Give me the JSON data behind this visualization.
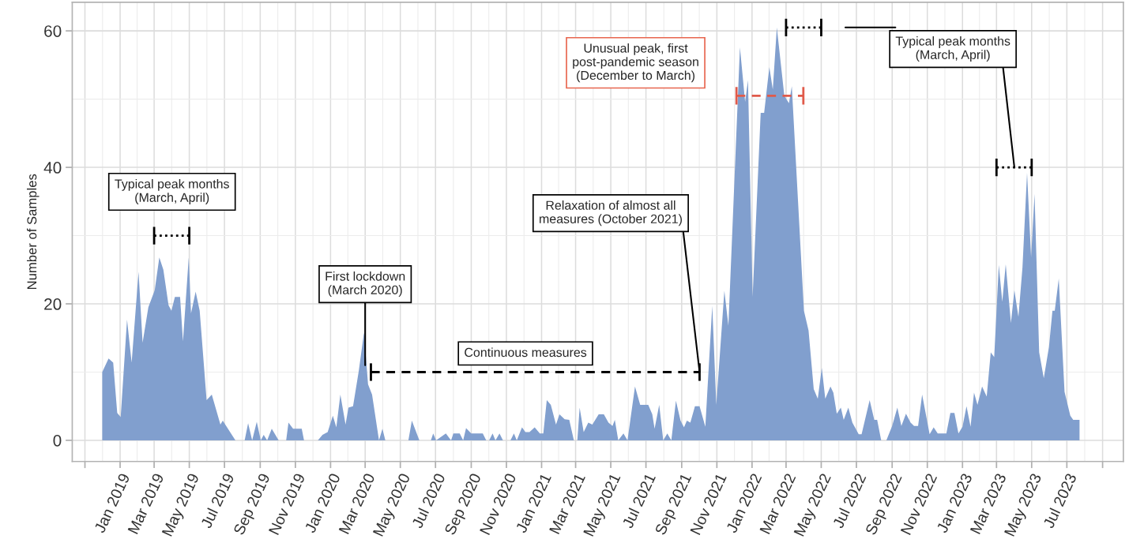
{
  "chart_data": {
    "type": "area",
    "ylabel": "Number of Samples",
    "xlim": [
      "2018-10-10",
      "2023-10-07"
    ],
    "ylim": [
      -3.1,
      64.2
    ],
    "yticks": [
      0,
      20,
      40,
      60
    ],
    "xticks": [
      {
        "value": "2018-11",
        "label": null
      },
      {
        "value": "2019-01",
        "label": "Jan 2019"
      },
      {
        "value": "2019-03",
        "label": "Mar 2019"
      },
      {
        "value": "2019-05",
        "label": "May 2019"
      },
      {
        "value": "2019-07",
        "label": "Jul 2019"
      },
      {
        "value": "2019-09",
        "label": "Sep 2019"
      },
      {
        "value": "2019-11",
        "label": "Nov 2019"
      },
      {
        "value": "2020-01",
        "label": "Jan 2020"
      },
      {
        "value": "2020-03",
        "label": "Mar 2020"
      },
      {
        "value": "2020-05",
        "label": "May 2020"
      },
      {
        "value": "2020-07",
        "label": "Jul 2020"
      },
      {
        "value": "2020-09",
        "label": "Sep 2020"
      },
      {
        "value": "2020-11",
        "label": "Nov 2020"
      },
      {
        "value": "2021-01",
        "label": "Jan 2021"
      },
      {
        "value": "2021-03",
        "label": "Mar 2021"
      },
      {
        "value": "2021-05",
        "label": "May 2021"
      },
      {
        "value": "2021-07",
        "label": "Jul 2021"
      },
      {
        "value": "2021-09",
        "label": "Sep 2021"
      },
      {
        "value": "2021-11",
        "label": "Nov 2021"
      },
      {
        "value": "2022-01",
        "label": "Jan 2022"
      },
      {
        "value": "2022-03",
        "label": "Mar 2022"
      },
      {
        "value": "2022-05",
        "label": "May 2022"
      },
      {
        "value": "2022-07",
        "label": "Jul 2022"
      },
      {
        "value": "2022-09",
        "label": "Sep 2022"
      },
      {
        "value": "2022-11",
        "label": "Nov 2022"
      },
      {
        "value": "2023-01",
        "label": "Jan 2023"
      },
      {
        "value": "2023-03",
        "label": "Mar 2023"
      },
      {
        "value": "2023-05",
        "label": "May 2023"
      },
      {
        "value": "2023-07",
        "label": "Jul 2023"
      },
      {
        "value": "2023-09",
        "label": null
      }
    ],
    "grid": true,
    "series": [
      {
        "color": "#819fce",
        "x": [
          "2018-12-01",
          "2018-12-12",
          "2018-12-20",
          "2018-12-27",
          "2019-01-02",
          "2019-01-13",
          "2019-01-21",
          "2019-02-02",
          "2019-02-09",
          "2019-02-19",
          "2019-03-02",
          "2019-03-10",
          "2019-03-17",
          "2019-03-26",
          "2019-03-31",
          "2019-04-06",
          "2019-04-15",
          "2019-04-20",
          "2019-04-30",
          "2019-05-04",
          "2019-05-12",
          "2019-05-19",
          "2019-05-31",
          "2019-06-09",
          "2019-06-24",
          "2019-06-28",
          "2019-07-20",
          "2019-08-05",
          "2019-08-11",
          "2019-08-18",
          "2019-08-26",
          "2019-09-02",
          "2019-09-07",
          "2019-09-13",
          "2019-09-21",
          "2019-10-03",
          "2019-10-16",
          "2019-10-20",
          "2019-10-28",
          "2019-11-12",
          "2019-11-16",
          "2019-12-10",
          "2019-12-18",
          "2019-12-27",
          "2020-01-05",
          "2020-01-11",
          "2020-01-18",
          "2020-01-27",
          "2020-02-01",
          "2020-02-09",
          "2020-02-19",
          "2020-02-28",
          "2020-03-06",
          "2020-03-13",
          "2020-03-25",
          "2020-03-31",
          "2020-04-05",
          "2020-05-15",
          "2020-05-21",
          "2020-06-03",
          "2020-06-23",
          "2020-06-27",
          "2020-07-02",
          "2020-07-19",
          "2020-07-28",
          "2020-08-01",
          "2020-08-12",
          "2020-08-18",
          "2020-08-23",
          "2020-09-01",
          "2020-09-21",
          "2020-09-27",
          "2020-10-02",
          "2020-10-08",
          "2020-10-13",
          "2020-10-20",
          "2020-10-26",
          "2020-11-08",
          "2020-11-14",
          "2020-11-19",
          "2020-11-28",
          "2020-12-04",
          "2020-12-11",
          "2020-12-20",
          "2020-12-29",
          "2021-01-04",
          "2021-01-10",
          "2021-01-17",
          "2021-01-26",
          "2021-02-01",
          "2021-02-10",
          "2021-02-18",
          "2021-02-26",
          "2021-03-04",
          "2021-03-08",
          "2021-03-15",
          "2021-03-23",
          "2021-03-30",
          "2021-04-10",
          "2021-04-19",
          "2021-04-27",
          "2021-05-04",
          "2021-05-08",
          "2021-05-14",
          "2021-05-23",
          "2021-05-30",
          "2021-06-12",
          "2021-06-21",
          "2021-07-05",
          "2021-07-12",
          "2021-07-16",
          "2021-07-24",
          "2021-07-31",
          "2021-08-07",
          "2021-08-14",
          "2021-08-22",
          "2021-08-30",
          "2021-09-05",
          "2021-09-10",
          "2021-09-16",
          "2021-09-24",
          "2021-10-02",
          "2021-10-12",
          "2021-10-24",
          "2021-10-31",
          "2021-11-14",
          "2021-11-21",
          "2021-12-11",
          "2021-12-20",
          "2021-12-25",
          "2022-01-02",
          "2022-01-16",
          "2022-01-22",
          "2022-01-31",
          "2022-02-06",
          "2022-02-13",
          "2022-02-26",
          "2022-03-06",
          "2022-03-11",
          "2022-04-01",
          "2022-04-09",
          "2022-04-18",
          "2022-04-25",
          "2022-05-02",
          "2022-05-08",
          "2022-05-17",
          "2022-05-22",
          "2022-05-28",
          "2022-06-04",
          "2022-06-09",
          "2022-06-17",
          "2022-06-24",
          "2022-07-05",
          "2022-07-10",
          "2022-07-24",
          "2022-08-01",
          "2022-08-06",
          "2022-08-13",
          "2022-08-22",
          "2022-09-01",
          "2022-09-10",
          "2022-09-17",
          "2022-09-25",
          "2022-10-03",
          "2022-10-09",
          "2022-10-16",
          "2022-10-23",
          "2022-11-05",
          "2022-11-12",
          "2022-11-19",
          "2022-12-04",
          "2022-12-11",
          "2022-12-18",
          "2022-12-25",
          "2023-01-01",
          "2023-01-08",
          "2023-01-15",
          "2023-01-21",
          "2023-01-27",
          "2023-02-04",
          "2023-02-12",
          "2023-02-19",
          "2023-02-25",
          "2023-03-05",
          "2023-03-11",
          "2023-03-17",
          "2023-03-26",
          "2023-04-01",
          "2023-04-08",
          "2023-04-15",
          "2023-04-23",
          "2023-04-30",
          "2023-05-06",
          "2023-05-14",
          "2023-05-22",
          "2023-05-31",
          "2023-06-06",
          "2023-06-10",
          "2023-06-17",
          "2023-06-27",
          "2023-07-07",
          "2023-07-12",
          "2023-07-23"
        ],
        "values": [
          10,
          12,
          11.4,
          4,
          3.4,
          17.7,
          11.4,
          24.7,
          14.3,
          19.5,
          22,
          26.8,
          25,
          19.8,
          19,
          21,
          21,
          14.5,
          26.8,
          18.6,
          21.8,
          19,
          5.9,
          6.7,
          2.3,
          2.9,
          0,
          0,
          2.5,
          0,
          2.7,
          0,
          0.8,
          0,
          1.7,
          0,
          0,
          2.6,
          1.7,
          1.7,
          0,
          0,
          0.8,
          1.2,
          3.6,
          1.9,
          6.7,
          2.3,
          4.8,
          5,
          10.2,
          15.8,
          8.2,
          6.7,
          0,
          1.7,
          0,
          0,
          2.9,
          0,
          0,
          1,
          0,
          1,
          0,
          1,
          1,
          0,
          1.8,
          1,
          1,
          0,
          0,
          1,
          0,
          1,
          0,
          0,
          1,
          0,
          1.9,
          1.2,
          1.2,
          1.9,
          1,
          1,
          5.9,
          5.2,
          2.3,
          3.8,
          3.1,
          3,
          0,
          0,
          4.8,
          1.2,
          2.6,
          2.3,
          3.8,
          3.8,
          2.6,
          2.1,
          3,
          0,
          1,
          0,
          7.9,
          5.2,
          5.2,
          3.8,
          1.7,
          5.2,
          0,
          1,
          0,
          5.8,
          2.9,
          1.9,
          2.9,
          2.6,
          5,
          5,
          2,
          19.7,
          5.2,
          21.9,
          16.8,
          57.6,
          49.6,
          52.8,
          21,
          48,
          48,
          54.7,
          51.4,
          60.5,
          50.5,
          49.4,
          51.9,
          19,
          16.1,
          7.5,
          6.1,
          10.6,
          6.1,
          7.9,
          7,
          3.9,
          4.8,
          3,
          4.8,
          2.6,
          0.9,
          0.9,
          5.9,
          3,
          3,
          0,
          0,
          2.1,
          4.8,
          2.1,
          3.9,
          2.6,
          2.1,
          2.1,
          6.7,
          0.9,
          1.9,
          1,
          1,
          4,
          4,
          1,
          2,
          5,
          2,
          7,
          5.2,
          7.9,
          6.4,
          12.9,
          12.2,
          25.7,
          20.3,
          25.8,
          17.2,
          22,
          18.1,
          25.3,
          39.2,
          26.8,
          36.1,
          12.9,
          9.1,
          13.7,
          19,
          19,
          23.7,
          7.1,
          3.6,
          3,
          3
        ]
      },
      {
        "type": "line",
        "color": "#000000",
        "line_style": "dotted",
        "x": [
          "2019-03-01",
          "2019-05-01"
        ],
        "values": [
          30,
          30
        ]
      },
      {
        "type": "line",
        "color": "#000000",
        "line_style": "dashed",
        "x": [
          "2020-03-11",
          "2021-10-02"
        ],
        "values": [
          10,
          10
        ]
      },
      {
        "type": "line",
        "color": "#e05a4a",
        "line_style": "dashed",
        "x": [
          "2021-12-05",
          "2022-03-31"
        ],
        "values": [
          50.5,
          50.5
        ]
      },
      {
        "type": "line",
        "color": "#000000",
        "line_style": "dotted",
        "x": [
          "2022-03-01",
          "2022-05-01"
        ],
        "values": [
          60.5,
          60.5
        ]
      },
      {
        "type": "line",
        "color": "#000000",
        "line_style": "dotted",
        "x": [
          "2023-03-01",
          "2023-05-01"
        ],
        "values": [
          40,
          40
        ]
      }
    ],
    "annotations": [
      {
        "text": "Typical peak months\n(March, April)",
        "x": "2019-04-01",
        "y": 30
      },
      {
        "text": "First lockdown\n(March 2020)",
        "x": "2020-03-01",
        "y": 11
      },
      {
        "text": "Continuous measures",
        "x": "2020-12-04",
        "y": 10
      },
      {
        "text": "Relaxation of almost all\nmeasures (October 2021)",
        "x": "2021-10-02",
        "y": 10
      },
      "Unusual peak, first\npost-pandemic season\n(December to March)",
      {
        "text": "Typical peak months\n(March, April)",
        "x": "2023-04-01",
        "y": 40
      }
    ]
  }
}
